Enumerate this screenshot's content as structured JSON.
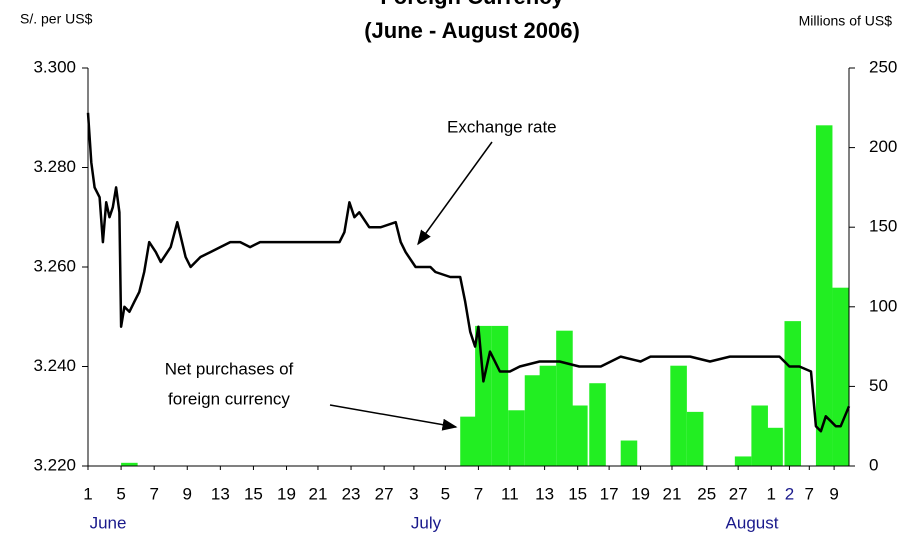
{
  "chart_data": {
    "type": "bar-line",
    "title": "Foreign Currency",
    "subtitle": "(June - August 2006)",
    "y_label": "S/. per US$",
    "y2_label": "Millions of US$",
    "months": [
      "June",
      "July",
      "August"
    ],
    "annotations": [
      "Exchange rate",
      "Net purchases of",
      "foreign currency"
    ],
    "xlim": [
      0,
      46
    ],
    "xticks": [
      {
        "value": 0,
        "label": "1"
      },
      {
        "value": 2,
        "label": "5"
      },
      {
        "value": 4,
        "label": "7"
      },
      {
        "value": 6,
        "label": "9"
      },
      {
        "value": 8,
        "label": "13"
      },
      {
        "value": 10,
        "label": "15"
      },
      {
        "value": 12,
        "label": "19"
      },
      {
        "value": 13.9,
        "label": "21"
      },
      {
        "value": 15.9,
        "label": "23"
      },
      {
        "value": 17.9,
        "label": "27"
      },
      {
        "value": 19.7,
        "label": "3"
      },
      {
        "value": 21.6,
        "label": "5"
      },
      {
        "value": 23.6,
        "label": "7"
      },
      {
        "value": 25.5,
        "label": "11"
      },
      {
        "value": 27.6,
        "label": "13"
      },
      {
        "value": 29.6,
        "label": "15"
      },
      {
        "value": 31.5,
        "label": "17"
      },
      {
        "value": 33.4,
        "label": "19"
      },
      {
        "value": 35.3,
        "label": "21"
      },
      {
        "value": 37.4,
        "label": "25"
      },
      {
        "value": 39.3,
        "label": "27"
      },
      {
        "value": 41.3,
        "label": "1"
      },
      {
        "value": 42.4,
        "label": "2"
      },
      {
        "value": 43.6,
        "label": "7"
      },
      {
        "value": 45.1,
        "label": "9"
      }
    ],
    "ylim": [
      3.22,
      3.3
    ],
    "yticks": [
      {
        "value": 3.22,
        "label": "3.220"
      },
      {
        "value": 3.24,
        "label": "3.240"
      },
      {
        "value": 3.26,
        "label": "3.260"
      },
      {
        "value": 3.28,
        "label": "3.280"
      },
      {
        "value": 3.3,
        "label": "3.300"
      }
    ],
    "y2lim": [
      0,
      250
    ],
    "y2ticks": [
      0,
      50,
      100,
      150,
      200,
      250
    ],
    "series": [
      {
        "name": "Net purchases of foreign currency",
        "type": "bar",
        "axis": "y2",
        "color": "#22ee22",
        "x": [
          2.5,
          23.0,
          23.9,
          24.9,
          25.9,
          26.9,
          27.8,
          28.8,
          29.7,
          30.8,
          32.7,
          35.7,
          36.7,
          39.6,
          40.6,
          41.5,
          42.6,
          44.5,
          45.5
        ],
        "values": [
          2,
          31,
          88,
          88,
          35,
          57,
          63,
          85,
          38,
          52,
          16,
          63,
          34,
          6,
          38,
          24,
          91,
          214,
          112
        ]
      },
      {
        "name": "Exchange rate",
        "type": "line",
        "axis": "y",
        "color": "#000000",
        "x": [
          0,
          0.2,
          0.4,
          0.7,
          0.9,
          1.1,
          1.3,
          1.5,
          1.7,
          1.9,
          2.0,
          2.2,
          2.5,
          2.8,
          3.1,
          3.4,
          3.7,
          4.1,
          4.4,
          5.0,
          5.4,
          5.9,
          6.2,
          6.8,
          7.4,
          8.0,
          8.6,
          9.2,
          9.8,
          10.4,
          11.0,
          11.6,
          12.8,
          14.0,
          14.6,
          15.2,
          15.5,
          15.8,
          16.1,
          16.4,
          17.0,
          17.7,
          18.6,
          18.9,
          19.2,
          19.8,
          20.7,
          21.0,
          21.9,
          22.5,
          22.8,
          23.1,
          23.4,
          23.6,
          23.9,
          24.3,
          24.9,
          25.5,
          26.1,
          27.3,
          28.5,
          29.7,
          31.0,
          32.2,
          33.4,
          34.0,
          35.2,
          36.4,
          37.6,
          38.8,
          40.6,
          41.8,
          42.4,
          43.0,
          43.7,
          44.0,
          44.3,
          44.6,
          44.9,
          45.2,
          45.5,
          46
        ],
        "values": [
          3.291,
          3.281,
          3.276,
          3.274,
          3.265,
          3.273,
          3.27,
          3.272,
          3.276,
          3.271,
          3.248,
          3.252,
          3.251,
          3.253,
          3.255,
          3.259,
          3.265,
          3.263,
          3.261,
          3.264,
          3.269,
          3.262,
          3.26,
          3.262,
          3.263,
          3.264,
          3.265,
          3.265,
          3.264,
          3.265,
          3.265,
          3.265,
          3.265,
          3.265,
          3.265,
          3.265,
          3.267,
          3.273,
          3.27,
          3.271,
          3.268,
          3.268,
          3.269,
          3.265,
          3.263,
          3.26,
          3.26,
          3.259,
          3.258,
          3.258,
          3.253,
          3.247,
          3.244,
          3.248,
          3.237,
          3.243,
          3.239,
          3.239,
          3.24,
          3.241,
          3.241,
          3.24,
          3.24,
          3.242,
          3.241,
          3.242,
          3.242,
          3.242,
          3.241,
          3.242,
          3.242,
          3.242,
          3.24,
          3.24,
          3.239,
          3.228,
          3.227,
          3.23,
          3.229,
          3.228,
          3.228,
          3.232
        ]
      }
    ]
  }
}
